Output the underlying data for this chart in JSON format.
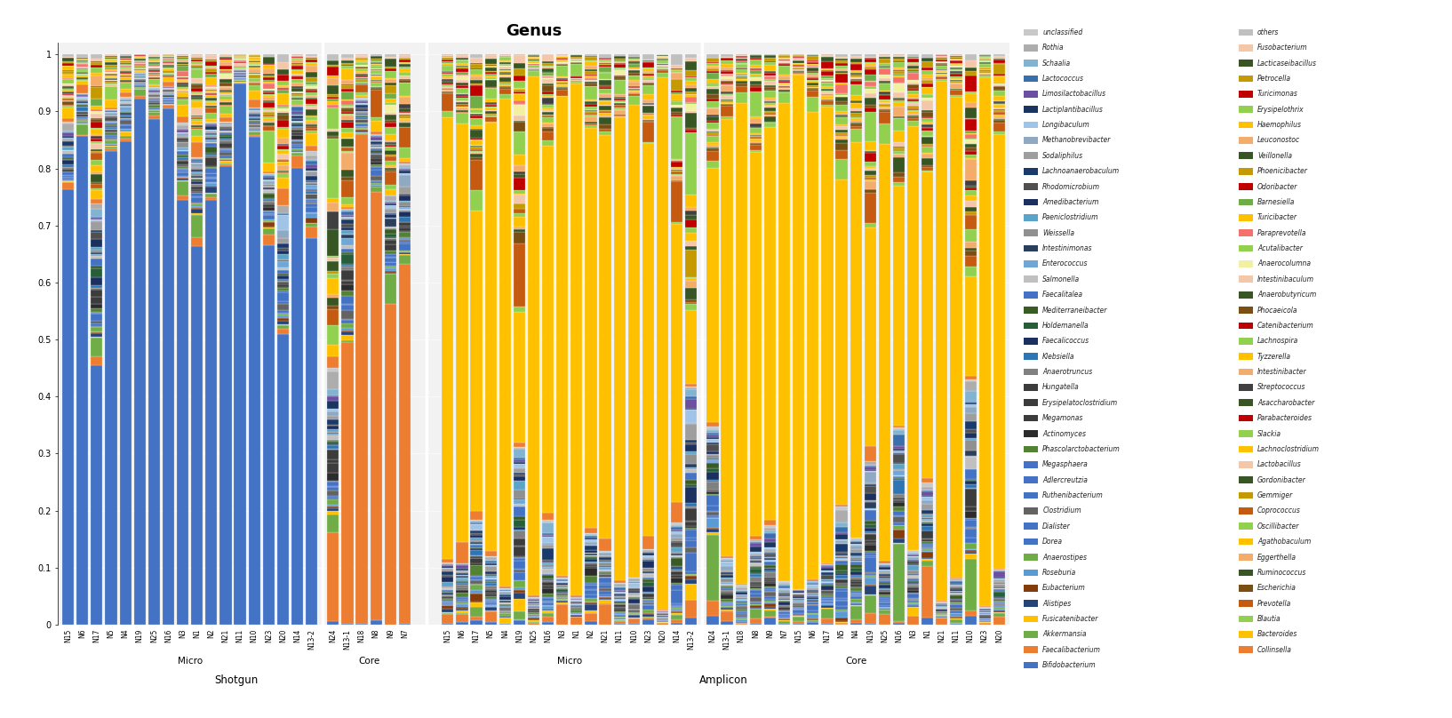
{
  "title": "Genus",
  "title_fontsize": 13,
  "title_fontweight": "bold",
  "genera_col1": [
    "unclassified",
    "Rothia",
    "Schaalia",
    "Lactococcus",
    "Limosilactobacillus",
    "Lactiplantibacillus",
    "Longibaculum",
    "Methanobrevibacter",
    "Sodaliphilus",
    "Lachnoanaerobaculum",
    "Rhodomicrobium",
    "Amedibacterium",
    "Paeniclostridium",
    "Weissella",
    "Intestinimonas",
    "Enterococcus",
    "Salmonella",
    "Faecalitalea",
    "Mediterraneibacter",
    "Holdemanella",
    "Faecalicoccus",
    "Klebsiella",
    "Anaerotruncus",
    "Hungatella",
    "Erysipelatoclostridium",
    "Megamonas",
    "Actinomyces",
    "Phascolarctobacterium",
    "Megasphaera",
    "Adlercreutzia",
    "Ruthenibacterium",
    "Clostridium",
    "Dialister",
    "Dorea",
    "Anaerostipes",
    "Roseburia",
    "Eubacterium",
    "Alistipes",
    "Fusicatenibacter",
    "Akkermansia",
    "Faecalibacterium",
    "Bifidobacterium"
  ],
  "genera_col2": [
    "others",
    "Fusobacterium",
    "Lacticaseibacillus",
    "Petrocella",
    "Turicimonas",
    "Erysipelothrix",
    "Haemophilus",
    "Leuconostoc",
    "Veillonella",
    "Phoenicibacter",
    "Odoribacter",
    "Barnesiella",
    "Turicibacter",
    "Paraprevotella",
    "Acutalibacter",
    "Anaerocolumna",
    "Intestinibaculum",
    "Anaerobutyricum",
    "Phocaeicola",
    "Catenibacterium",
    "Lachnospira",
    "Tyzzerella",
    "Intestinibacter",
    "Streptococcus",
    "Asaccharobacter",
    "Parabacteroides",
    "Slackia",
    "Lachnoclostridium",
    "Lactobacillus",
    "Gordonibacter",
    "Gemmiger",
    "Coprococcus",
    "Oscillibacter",
    "Agathobaculum",
    "Eggerthella",
    "Ruminococcus",
    "Escherichia",
    "Prevotella",
    "Blautia",
    "Bacteroides",
    "Collinsella"
  ],
  "genus_colors": {
    "unclassified": "#C8C8C8",
    "Rothia": "#ADADAD",
    "Schaalia": "#8AB4D4",
    "Lactococcus": "#4472C4",
    "Limosilactobacillus": "#7B5EA7",
    "Lactiplantibacillus": "#203864",
    "Longibaculum": "#9DC3E6",
    "Methanobrevibacter": "#8EA9C1",
    "Sodaliphilus": "#9E9E9E",
    "Lachnoanaerobaculum": "#1F4E79",
    "Rhodomicrobium": "#404040",
    "Amedibacterium": "#243F60",
    "Paeniclostridium": "#5BA3C9",
    "Weissella": "#7F7F7F",
    "Intestinimonas": "#2E4057",
    "Enterococcus": "#6FA8D6",
    "Salmonella": "#B8B8B8",
    "Faecalitalea": "#4472C4",
    "Mediterraneibacter": "#375623",
    "Holdemanella": "#255E38",
    "Faecalicoccus": "#203864",
    "Klebsiella": "#2E75B6",
    "Anaerotruncus": "#757575",
    "Hungatella": "#404040",
    "Erysipelatoclostridium": "#404040",
    "Megamonas": "#404040",
    "Actinomyces": "#404040",
    "Phascolarctobacterium": "#548235",
    "Megasphaera": "#4472C4",
    "Adlercreutzia": "#4472C4",
    "Ruthenibacterium": "#4472C4",
    "Clostridium": "#636363",
    "Dialister": "#4472C4",
    "Dorea": "#4472C4",
    "Anaerostipes": "#4472C4",
    "Roseburia": "#4472C4",
    "Eubacterium": "#843C0C",
    "Alistipes": "#264478",
    "Fusicatenibacter": "#FFC000",
    "Akkermansia": "#70AD47",
    "Faecalibacterium": "#ED7D31",
    "Bifidobacterium": "#4472C4",
    "others": "#C8C8C8",
    "Fusobacterium": "#F4C7A8",
    "Lacticaseibacillus": "#375623",
    "Petrocella": "#C49A00",
    "Turicimonas": "#C00000",
    "Erysipelothrix": "#92D050",
    "Haemophilus": "#FFC000",
    "Leuconostoc": "#F4AC6A",
    "Veillonella": "#375623",
    "Phoenicibacter": "#C49A00",
    "Odoribacter": "#C00000",
    "Barnesiella": "#70AD47",
    "Turicibacter": "#FFC000",
    "Paraprevotella": "#F4726A",
    "Acutalibacter": "#92D050",
    "Anaerocolumna": "#F2F0A1",
    "Intestinibaculum": "#F4C7A8",
    "Anaerobutyricum": "#375623",
    "Phocaeicola": "#6B4C11",
    "Catenibacterium": "#C00000",
    "Lachnospira": "#92D050",
    "Tyzzerella": "#FFC000",
    "Intestinibacter": "#F4AC6A",
    "Streptococcus": "#404040",
    "Asaccharobacter": "#375623",
    "Parabacteroides": "#C00000",
    "Slackia": "#92D050",
    "Lachnoclostridium": "#FFC000",
    "Lactobacillus": "#F4C7A8",
    "Gordonibacter": "#375623",
    "Gemmiger": "#C49A00",
    "Coprococcus": "#C55A11",
    "Oscillibacter": "#92D050",
    "Agathobaculum": "#FFC000",
    "Eggerthella": "#F4AC6A",
    "Ruminococcus": "#375623",
    "Escherichia": "#6B4C11",
    "Prevotella": "#C55A11",
    "Blautia": "#92D050",
    "Bacteroides": "#FFC000",
    "Collinsella": "#ED7D31"
  },
  "shotgun_micro": [
    "N15",
    "N6",
    "N17",
    "N5",
    "N4",
    "N19",
    "N25",
    "N16",
    "N3",
    "N1",
    "N2",
    "N21",
    "N11",
    "N10",
    "N23",
    "N20",
    "N14",
    "N13-2"
  ],
  "shotgun_core": [
    "N24",
    "N13-1",
    "N18",
    "N8",
    "N9",
    "N7"
  ],
  "amplicon_micro": [
    "N15",
    "N6",
    "N17",
    "N5",
    "N4",
    "N19",
    "N25",
    "N16",
    "N3",
    "N1",
    "N2",
    "N21",
    "N11",
    "N10",
    "N23",
    "N20",
    "N14",
    "N13-2"
  ],
  "amplicon_core": [
    "N24",
    "N13-1",
    "N18",
    "N8",
    "N9",
    "N7",
    "N15",
    "N6",
    "N17",
    "N5",
    "N4",
    "N19",
    "N25",
    "N16",
    "N3",
    "N1",
    "N21",
    "N11",
    "N10",
    "N23",
    "N20"
  ]
}
